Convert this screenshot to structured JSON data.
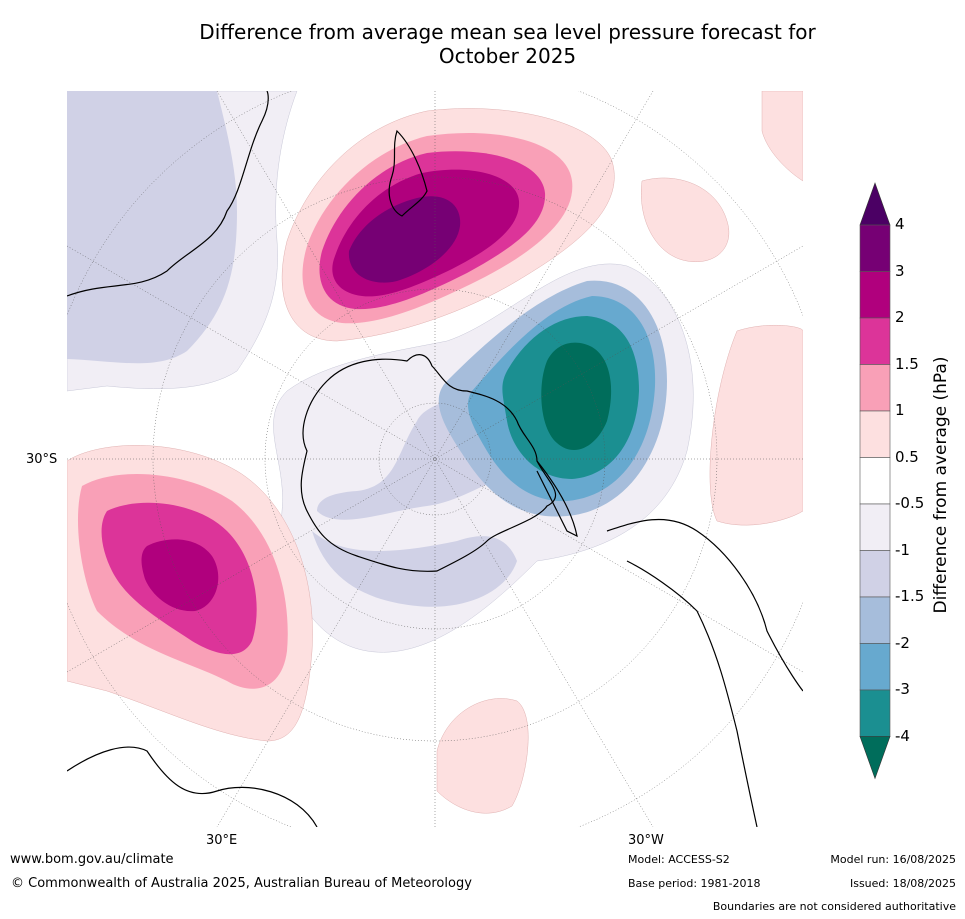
{
  "title_line1": "Difference from average mean sea level pressure forecast for",
  "title_line2": "October 2025",
  "labels": {
    "lat_30s": "30°S",
    "lon_30e": "30°E",
    "lon_30w": "30°W"
  },
  "colorbar": {
    "title": "Difference from average (hPa)",
    "ticks": [
      "4",
      "3",
      "2",
      "1.5",
      "1",
      "0.5",
      "-0.5",
      "-1",
      "-1.5",
      "-2",
      "-3",
      "-4"
    ],
    "colors": [
      "#4b0064",
      "#760074",
      "#b0007d",
      "#dc3499",
      "#f9a0b7",
      "#fde0e0",
      "#ffffff",
      "#f1eef5",
      "#d0d1e6",
      "#a6bddb",
      "#67a9cf",
      "#1b8f91",
      "#006d5b"
    ]
  },
  "footer": {
    "website": "www.bom.gov.au/climate",
    "copyright": "© Commonwealth of Australia 2025, Australian Bureau of Meteorology",
    "model": "Model: ACCESS-S2",
    "base_period": "Base period: 1981-2018",
    "model_run": "Model run: 16/08/2025",
    "issued": "Issued: 18/08/2025",
    "disclaimer": "Boundaries are not considered authoritative"
  }
}
